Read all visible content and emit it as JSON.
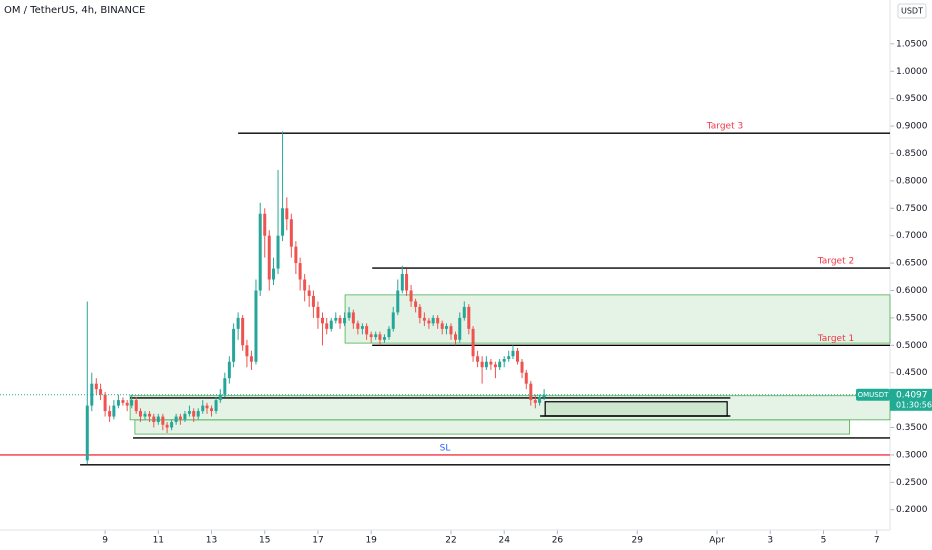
{
  "chart_data": {
    "type": "candlestick",
    "title": "OM / TetherUS, 4h, BINANCE",
    "currency": "USDT",
    "symbol": "OMUSDT",
    "countdown": "01:30:56",
    "up_color": "#26a69a",
    "down_color": "#ef5350",
    "price_color": "#22ab94",
    "x": [
      8.33,
      8.5,
      8.67,
      8.83,
      9,
      9.17,
      9.33,
      9.5,
      9.67,
      9.83,
      10,
      10.17,
      10.33,
      10.5,
      10.67,
      10.83,
      11,
      11.17,
      11.33,
      11.5,
      11.67,
      11.83,
      12,
      12.17,
      12.33,
      12.5,
      12.67,
      12.83,
      13,
      13.17,
      13.33,
      13.5,
      13.67,
      13.83,
      14,
      14.17,
      14.33,
      14.5,
      14.67,
      14.83,
      15,
      15.17,
      15.33,
      15.5,
      15.67,
      15.83,
      16,
      16.17,
      16.33,
      16.5,
      16.67,
      16.83,
      17,
      17.17,
      17.33,
      17.5,
      17.67,
      17.83,
      18,
      18.17,
      18.33,
      18.5,
      18.67,
      18.83,
      19,
      19.17,
      19.33,
      19.5,
      19.67,
      19.83,
      20,
      20.17,
      20.33,
      20.5,
      20.67,
      20.83,
      21,
      21.17,
      21.33,
      21.5,
      21.67,
      21.83,
      22,
      22.17,
      22.33,
      22.5,
      22.67,
      22.83,
      23,
      23.17,
      23.33,
      23.5,
      23.67,
      23.83,
      24,
      24.17,
      24.33,
      24.5,
      24.67,
      24.83,
      25,
      25.17,
      25.33,
      25.5
    ],
    "open": [
      0.29,
      0.39,
      0.43,
      0.42,
      0.41,
      0.38,
      0.37,
      0.39,
      0.4,
      0.395,
      0.39,
      0.4,
      0.38,
      0.37,
      0.375,
      0.37,
      0.36,
      0.37,
      0.355,
      0.35,
      0.36,
      0.37,
      0.365,
      0.375,
      0.38,
      0.37,
      0.38,
      0.39,
      0.385,
      0.38,
      0.4,
      0.41,
      0.44,
      0.47,
      0.53,
      0.55,
      0.5,
      0.48,
      0.47,
      0.6,
      0.74,
      0.7,
      0.62,
      0.64,
      0.7,
      0.75,
      0.73,
      0.68,
      0.65,
      0.62,
      0.6,
      0.59,
      0.57,
      0.55,
      0.54,
      0.53,
      0.545,
      0.55,
      0.54,
      0.55,
      0.56,
      0.54,
      0.53,
      0.535,
      0.52,
      0.515,
      0.52,
      0.51,
      0.515,
      0.53,
      0.56,
      0.6,
      0.63,
      0.6,
      0.58,
      0.57,
      0.55,
      0.545,
      0.54,
      0.55,
      0.54,
      0.53,
      0.535,
      0.52,
      0.51,
      0.55,
      0.57,
      0.53,
      0.48,
      0.47,
      0.46,
      0.47,
      0.465,
      0.46,
      0.47,
      0.475,
      0.48,
      0.49,
      0.47,
      0.45,
      0.43,
      0.4,
      0.395,
      0.405
    ],
    "high": [
      0.58,
      0.45,
      0.44,
      0.43,
      0.415,
      0.39,
      0.4,
      0.41,
      0.405,
      0.4,
      0.41,
      0.405,
      0.385,
      0.38,
      0.38,
      0.375,
      0.375,
      0.375,
      0.36,
      0.365,
      0.375,
      0.375,
      0.38,
      0.39,
      0.385,
      0.385,
      0.4,
      0.395,
      0.39,
      0.405,
      0.42,
      0.45,
      0.48,
      0.54,
      0.56,
      0.555,
      0.51,
      0.49,
      0.62,
      0.76,
      0.75,
      0.71,
      0.66,
      0.82,
      0.89,
      0.77,
      0.74,
      0.69,
      0.66,
      0.63,
      0.61,
      0.6,
      0.58,
      0.56,
      0.55,
      0.55,
      0.56,
      0.555,
      0.56,
      0.57,
      0.565,
      0.545,
      0.54,
      0.54,
      0.525,
      0.525,
      0.525,
      0.52,
      0.535,
      0.57,
      0.62,
      0.645,
      0.64,
      0.61,
      0.585,
      0.575,
      0.56,
      0.55,
      0.555,
      0.555,
      0.545,
      0.54,
      0.54,
      0.525,
      0.56,
      0.58,
      0.575,
      0.535,
      0.49,
      0.48,
      0.48,
      0.475,
      0.47,
      0.475,
      0.48,
      0.49,
      0.5,
      0.495,
      0.475,
      0.455,
      0.435,
      0.41,
      0.41,
      0.42
    ],
    "low": [
      0.283,
      0.38,
      0.41,
      0.4,
      0.37,
      0.36,
      0.365,
      0.385,
      0.39,
      0.38,
      0.385,
      0.375,
      0.36,
      0.365,
      0.36,
      0.35,
      0.355,
      0.345,
      0.34,
      0.345,
      0.355,
      0.355,
      0.36,
      0.37,
      0.36,
      0.365,
      0.375,
      0.375,
      0.37,
      0.375,
      0.395,
      0.405,
      0.43,
      0.46,
      0.51,
      0.49,
      0.46,
      0.455,
      0.465,
      0.59,
      0.66,
      0.6,
      0.61,
      0.63,
      0.69,
      0.71,
      0.66,
      0.63,
      0.6,
      0.58,
      0.57,
      0.55,
      0.53,
      0.5,
      0.52,
      0.525,
      0.54,
      0.53,
      0.535,
      0.545,
      0.53,
      0.52,
      0.52,
      0.51,
      0.505,
      0.51,
      0.5,
      0.505,
      0.51,
      0.525,
      0.555,
      0.595,
      0.59,
      0.57,
      0.56,
      0.54,
      0.535,
      0.53,
      0.535,
      0.53,
      0.52,
      0.52,
      0.51,
      0.5,
      0.505,
      0.545,
      0.52,
      0.47,
      0.46,
      0.43,
      0.455,
      0.455,
      0.44,
      0.455,
      0.46,
      0.47,
      0.475,
      0.465,
      0.44,
      0.42,
      0.39,
      0.385,
      0.39,
      0.4
    ],
    "close": [
      0.39,
      0.43,
      0.42,
      0.41,
      0.38,
      0.37,
      0.39,
      0.4,
      0.395,
      0.39,
      0.4,
      0.38,
      0.37,
      0.375,
      0.37,
      0.36,
      0.37,
      0.355,
      0.35,
      0.36,
      0.37,
      0.365,
      0.375,
      0.38,
      0.37,
      0.38,
      0.39,
      0.385,
      0.38,
      0.4,
      0.41,
      0.44,
      0.47,
      0.53,
      0.55,
      0.5,
      0.48,
      0.47,
      0.6,
      0.74,
      0.7,
      0.62,
      0.64,
      0.7,
      0.75,
      0.73,
      0.68,
      0.65,
      0.62,
      0.6,
      0.59,
      0.57,
      0.55,
      0.54,
      0.53,
      0.545,
      0.55,
      0.54,
      0.55,
      0.56,
      0.54,
      0.53,
      0.535,
      0.52,
      0.515,
      0.52,
      0.51,
      0.515,
      0.53,
      0.56,
      0.6,
      0.63,
      0.6,
      0.58,
      0.57,
      0.55,
      0.545,
      0.54,
      0.55,
      0.54,
      0.53,
      0.535,
      0.52,
      0.51,
      0.55,
      0.57,
      0.53,
      0.48,
      0.47,
      0.46,
      0.47,
      0.465,
      0.46,
      0.47,
      0.475,
      0.48,
      0.49,
      0.47,
      0.45,
      0.43,
      0.4,
      0.395,
      0.405,
      0.4097
    ],
    "xlim": [
      5.05,
      38.5
    ],
    "xticks": [
      9,
      11,
      13,
      15,
      17,
      19,
      22,
      24,
      26,
      29,
      {
        "value": 32,
        "label": "Apr"
      },
      {
        "value": 34,
        "label": "3"
      },
      {
        "value": 36,
        "label": "5"
      },
      {
        "value": 38,
        "label": "7"
      }
    ],
    "ylim": [
      0.163,
      1.13
    ],
    "yticks": [
      {
        "value": 0.2,
        "label": "0.2000"
      },
      {
        "value": 0.25,
        "label": "0.2500"
      },
      {
        "value": 0.3,
        "label": "0.3000"
      },
      {
        "value": 0.35,
        "label": "0.3500"
      },
      {
        "value": 0.4,
        "label": "0.4000"
      },
      {
        "value": 0.45,
        "label": "0.4500"
      },
      {
        "value": 0.5,
        "label": "0.5000"
      },
      {
        "value": 0.55,
        "label": "0.5500"
      },
      {
        "value": 0.6,
        "label": "0.6000"
      },
      {
        "value": 0.65,
        "label": "0.6500"
      },
      {
        "value": 0.7,
        "label": "0.7000"
      },
      {
        "value": 0.75,
        "label": "0.7500"
      },
      {
        "value": 0.8,
        "label": "0.8000"
      },
      {
        "value": 0.85,
        "label": "0.8500"
      },
      {
        "value": 0.9,
        "label": "0.9000"
      },
      {
        "value": 0.95,
        "label": "0.9500"
      },
      {
        "value": 1.0,
        "label": "1.0000"
      },
      {
        "value": 1.05,
        "label": "1.0500"
      }
    ],
    "zone_color": "#4caf50",
    "zones": [
      {
        "x": [
          18.02,
          38.5
        ],
        "y": [
          0.504,
          0.592
        ]
      },
      {
        "x": [
          9.94,
          38.5
        ],
        "y": [
          0.364,
          0.408
        ]
      },
      {
        "x": [
          10.12,
          36.98
        ],
        "y": [
          0.338,
          0.364
        ]
      },
      {
        "x": [
          25.54,
          32.38
        ],
        "y": [
          0.371,
          0.397
        ],
        "border": "#000000"
      }
    ],
    "lines": [
      {
        "y": 0.887,
        "x": [
          14.0,
          38.5
        ],
        "color": "#000000",
        "label": "Target 3",
        "label_color": "#f23645"
      },
      {
        "y": 0.641,
        "x": [
          19.04,
          38.5
        ],
        "color": "#000000",
        "label": "Target 2",
        "label_color": "#f23645"
      },
      {
        "y": 0.5,
        "x": [
          19.04,
          38.5
        ],
        "color": "#000000",
        "label": "Target 1",
        "label_color": "#f23645"
      },
      {
        "y": 0.3,
        "x": [
          5.05,
          38.5
        ],
        "color": "#f23645",
        "label": "SL",
        "label_color": "#2962ff"
      },
      {
        "y": 0.404,
        "x": [
          9.94,
          32.5
        ],
        "color": "#000000"
      },
      {
        "y": 0.371,
        "x": [
          25.35,
          32.5
        ],
        "color": "#000000"
      },
      {
        "y": 0.331,
        "x": [
          10.05,
          38.5
        ],
        "color": "#000000"
      },
      {
        "y": 0.282,
        "x": [
          8.06,
          38.5
        ],
        "color": "#000000"
      }
    ]
  }
}
